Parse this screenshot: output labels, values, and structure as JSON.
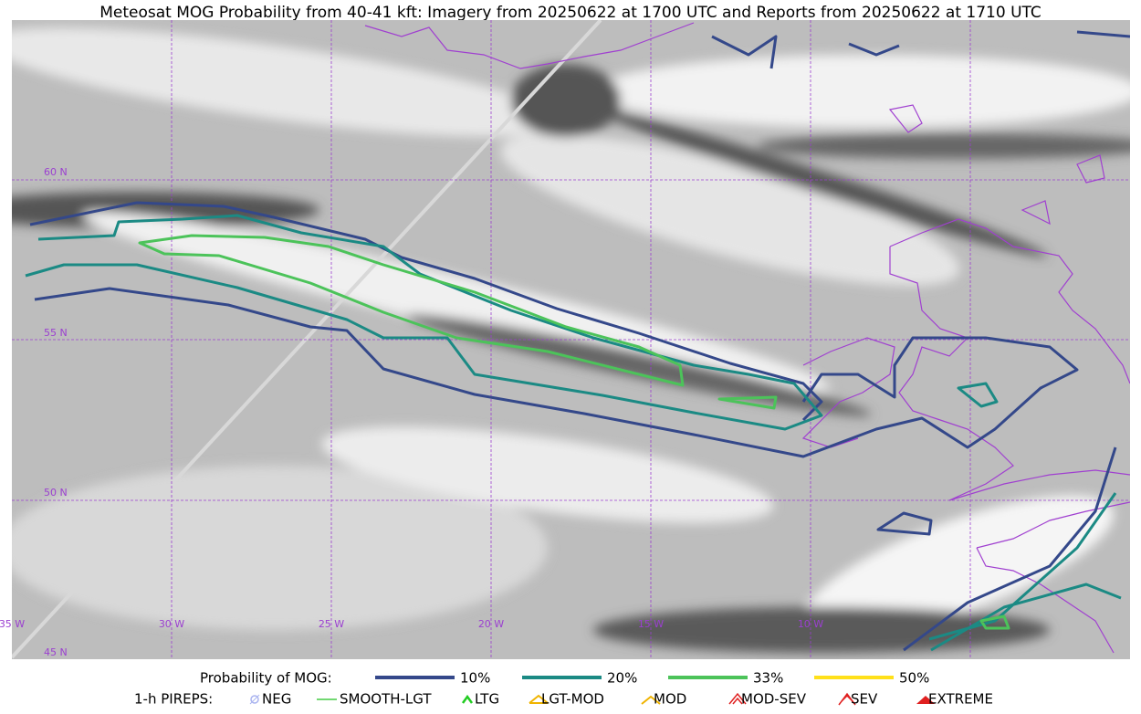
{
  "title": "Meteosat MOG Probability from 40-41 kft: Imagery from 20250622 at 1700 UTC and Reports from 20250622 at 1710 UTC",
  "map": {
    "lat_labels": [
      "60 N",
      "55 N",
      "50 N",
      "45 N"
    ],
    "lon_labels": [
      "35 W",
      "30 W",
      "25 W",
      "20 W",
      "15 W",
      "10 W"
    ]
  },
  "legend": {
    "probability": {
      "label": "Probability of MOG:",
      "items": [
        {
          "label": "10%",
          "color": "#34488a"
        },
        {
          "label": "20%",
          "color": "#1b8a84"
        },
        {
          "label": "33%",
          "color": "#4cc35a"
        },
        {
          "label": "50%",
          "color": "#ffe01a"
        }
      ]
    },
    "pireps": {
      "label": "1-h PIREPS:",
      "items": [
        {
          "label": "NEG"
        },
        {
          "label": "SMOOTH-LGT"
        },
        {
          "label": "LTG"
        },
        {
          "label": "LGT-MOD"
        },
        {
          "label": "MOD"
        },
        {
          "label": "MOD-SEV"
        },
        {
          "label": "SEV"
        },
        {
          "label": "EXTREME"
        }
      ]
    }
  }
}
